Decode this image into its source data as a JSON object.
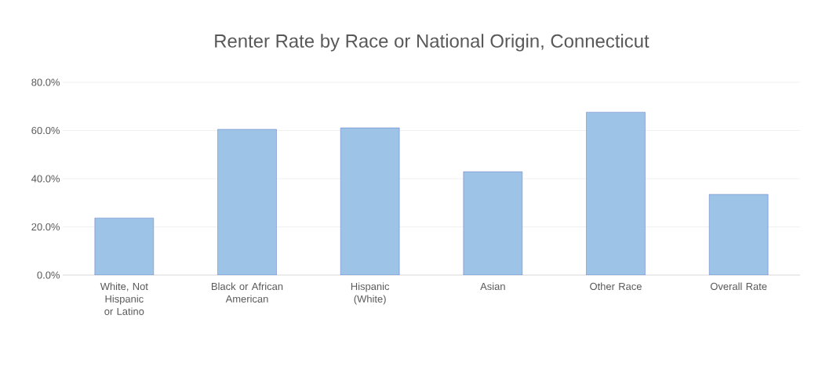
{
  "chart_data": {
    "type": "bar",
    "title": "Renter Rate by Race or National Origin, Connecticut",
    "categories": [
      "White, Not Hispanic or Latino",
      "Black or African American",
      "Hispanic (White)",
      "Asian",
      "Other Race",
      "Overall Rate"
    ],
    "values": [
      23.7,
      60.5,
      61.1,
      42.9,
      67.6,
      33.5
    ],
    "color": "#9dc3e6",
    "ylim": [
      0,
      80
    ],
    "yticks": [
      {
        "value": 0,
        "label": "0.0%"
      },
      {
        "value": 20,
        "label": "20.0%"
      },
      {
        "value": 40,
        "label": "40.0%"
      },
      {
        "value": 60,
        "label": "60.0%"
      },
      {
        "value": 80,
        "label": "80.0%"
      }
    ],
    "grid": "y"
  }
}
